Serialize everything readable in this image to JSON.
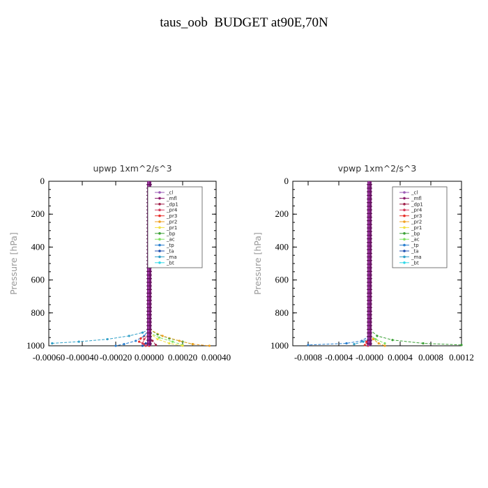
{
  "title": "taus_oob  BUDGET at90E,70N",
  "legend_entries": [
    "_cl",
    "_mfl",
    "_dp1",
    "_pr4",
    "_pr3",
    "_pr2",
    "_pr1",
    "_bp",
    "_ac",
    "_tp",
    "_ta",
    "_ma",
    "_bt"
  ],
  "colors": {
    "_cl": "#9b59b6",
    "_mfl": "#8b1a6b",
    "_dp1": "#a0204a",
    "_pr4": "#d23c5a",
    "_pr3": "#e8302a",
    "_pr2": "#f0a020",
    "_pr1": "#f0e040",
    "_bp": "#3aa035",
    "_ac": "#7ee060",
    "_tp": "#2a7fd0",
    "_ta": "#2050b0",
    "_ma": "#30a0c8",
    "_bt": "#30d8e8"
  },
  "chart_data": [
    {
      "type": "line",
      "title": "upwp   1xm^2/s^3",
      "ylabel": "Pressure [hPa]",
      "xlabel": "",
      "xlim": [
        -0.0006,
        0.0004
      ],
      "ylim": [
        1000,
        0
      ],
      "xticks": [
        -0.0006,
        -0.0004,
        -0.0002,
        0.0,
        0.0002,
        0.0004
      ],
      "xtick_labels": [
        "-0.00060",
        "-0.00040",
        "-0.00020",
        "0.00000",
        "0.00020",
        "0.00040"
      ],
      "yticks": [
        0,
        200,
        400,
        600,
        800,
        1000
      ],
      "ytick_labels": [
        "0",
        "200",
        "400",
        "600",
        "800",
        "1000"
      ],
      "legend": "top-right",
      "series": [
        {
          "name": "_ma",
          "pressure": [
            900,
            920,
            940,
            960,
            975,
            985
          ],
          "values": [
            0.0,
            -4e-05,
            -0.00012,
            -0.00025,
            -0.00042,
            -0.00058
          ]
        },
        {
          "name": "_tp",
          "pressure": [
            900,
            940,
            970,
            990,
            1000
          ],
          "values": [
            0.0,
            -3e-05,
            -8e-05,
            -0.00015,
            -0.0002
          ]
        },
        {
          "name": "_bp",
          "pressure": [
            900,
            930,
            955,
            975,
            990
          ],
          "values": [
            0.0,
            5e-05,
            0.00012,
            0.0002,
            0.00026
          ]
        },
        {
          "name": "_ac",
          "pressure": [
            920,
            950,
            975,
            995
          ],
          "values": [
            0.0,
            6e-05,
            0.00014,
            0.0002
          ]
        },
        {
          "name": "_pr2",
          "pressure": [
            900,
            940,
            970,
            990,
            1000
          ],
          "values": [
            0.0,
            8e-05,
            0.00018,
            0.00026,
            0.00036
          ]
        },
        {
          "name": "_pr1",
          "pressure": [
            920,
            960,
            985,
            1000
          ],
          "values": [
            0.0,
            5e-05,
            0.00012,
            0.0002
          ]
        },
        {
          "name": "_pr3",
          "pressure": [
            930,
            955,
            975,
            990,
            1000
          ],
          "values": [
            0.0,
            -5e-05,
            -6e-05,
            -3e-05,
            0.0
          ]
        },
        {
          "name": "_pr4",
          "pressure": [
            930,
            960,
            985,
            1000
          ],
          "values": [
            0.0,
            -3e-05,
            -4e-05,
            -2e-05
          ]
        },
        {
          "name": "_dp1",
          "pressure": [
            940,
            970,
            995
          ],
          "values": [
            0.0,
            2e-05,
            4e-05
          ]
        },
        {
          "name": "_ta",
          "pressure": [
            960,
            985,
            1000
          ],
          "values": [
            0.0,
            -2e-05,
            -4e-05
          ]
        }
      ]
    },
    {
      "type": "line",
      "title": "vpwp   1xm^2/s^3",
      "ylabel": "Pressure [hPa]",
      "xlabel": "",
      "xlim": [
        -0.001,
        0.0012
      ],
      "ylim": [
        1000,
        0
      ],
      "xticks": [
        -0.0008,
        -0.0004,
        0.0,
        0.0004,
        0.0008,
        0.0012
      ],
      "xtick_labels": [
        "-0.0008",
        "-0.0004",
        "-0.0000",
        "0.0004",
        "0.0008",
        "0.0012"
      ],
      "yticks": [
        0,
        200,
        400,
        600,
        800,
        1000
      ],
      "ytick_labels": [
        "0",
        "200",
        "400",
        "600",
        "800",
        "1000"
      ],
      "legend": "top-right",
      "series": [
        {
          "name": "_tp",
          "pressure": [
            940,
            970,
            985,
            995
          ],
          "values": [
            0.0,
            -0.0001,
            -0.0003,
            -0.0008
          ]
        },
        {
          "name": "_ma",
          "pressure": [
            950,
            975,
            990
          ],
          "values": [
            0.0,
            -8e-05,
            -0.0002
          ]
        },
        {
          "name": "_bp",
          "pressure": [
            900,
            940,
            965,
            985,
            995
          ],
          "values": [
            0.0,
            0.0001,
            0.0003,
            0.0007,
            0.0012
          ]
        },
        {
          "name": "_ac",
          "pressure": [
            930,
            960,
            985
          ],
          "values": [
            0.0,
            8e-05,
            0.0002
          ]
        },
        {
          "name": "_pr2",
          "pressure": [
            930,
            960,
            985,
            1000
          ],
          "values": [
            0.0,
            5e-05,
            0.00012,
            0.0002
          ]
        },
        {
          "name": "_pr3",
          "pressure": [
            950,
            975,
            995
          ],
          "values": [
            0.0,
            -4e-05,
            -6e-05
          ]
        },
        {
          "name": "_pr4",
          "pressure": [
            960,
            985,
            1000
          ],
          "values": [
            0.0,
            -3e-05,
            -2e-05
          ]
        }
      ]
    }
  ]
}
